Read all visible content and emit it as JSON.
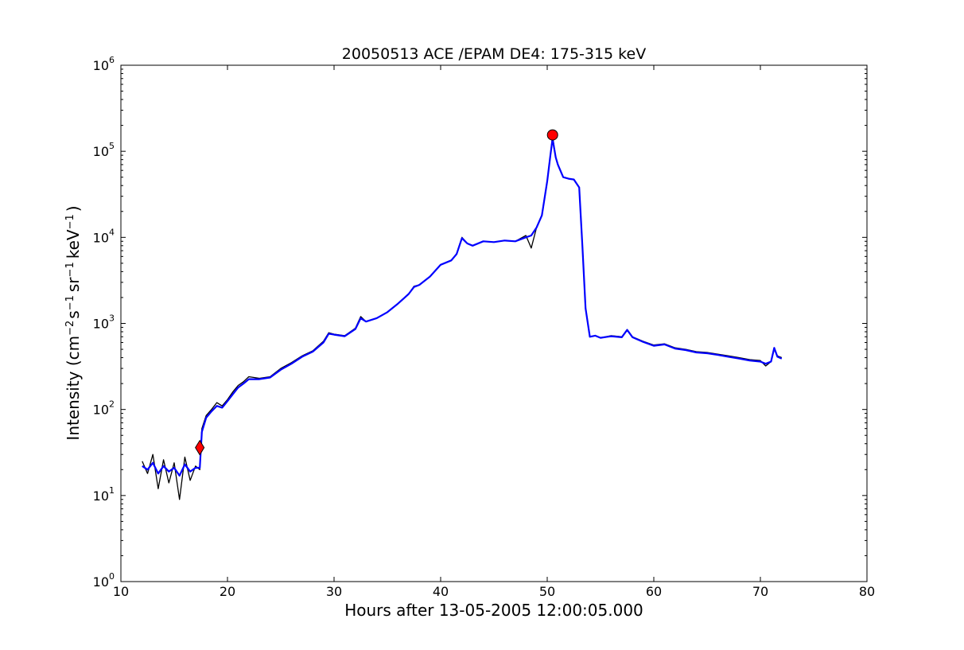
{
  "chart_data": {
    "type": "line",
    "title": "20050513 ACE /EPAM DE4: 175-315 keV",
    "xlabel": "Hours after 13-05-2005 12:00:05.000",
    "ylabel": {
      "prefix": "Intensity (cm",
      "sup1": "−2",
      "part2": "s",
      "sup2": "−1",
      "part3": "sr",
      "sup3": "−1",
      "part4": "keV",
      "sup4": "−1",
      "suffix": ")"
    },
    "xlim": [
      10,
      80
    ],
    "ylim": [
      1,
      1000000
    ],
    "yscale": "log",
    "grid": false,
    "x_tick_labels": [
      "10",
      "20",
      "30",
      "40",
      "50",
      "60",
      "70",
      "80"
    ],
    "x_ticks": [
      10,
      20,
      30,
      40,
      50,
      60,
      70,
      80
    ],
    "y_ticks": [
      {
        "value": 1,
        "base": "10",
        "exp": "0"
      },
      {
        "value": 10,
        "base": "10",
        "exp": "1"
      },
      {
        "value": 100,
        "base": "10",
        "exp": "2"
      },
      {
        "value": 1000,
        "base": "10",
        "exp": "3"
      },
      {
        "value": 10000,
        "base": "10",
        "exp": "4"
      },
      {
        "value": 100000,
        "base": "10",
        "exp": "5"
      },
      {
        "value": 1000000,
        "base": "10",
        "exp": "6"
      }
    ],
    "series": [
      {
        "color": "#000000",
        "style": "raw",
        "x": [
          12.0,
          12.5,
          13.0,
          13.5,
          14.0,
          14.5,
          15.0,
          15.5,
          16.0,
          16.5,
          17.0,
          17.4,
          17.6,
          18.0,
          18.5,
          19.0,
          19.5,
          20.0,
          20.5,
          21.0,
          21.5,
          22.0,
          23.0,
          24.0,
          25.0,
          26.0,
          27.0,
          28.0,
          29.0,
          29.5,
          30.0,
          31.0,
          32.0,
          32.5,
          33.0,
          34.0,
          35.0,
          36.0,
          37.0,
          37.5,
          38.0,
          39.0,
          40.0,
          41.0,
          41.5,
          42.0,
          42.5,
          43.0,
          44.0,
          45.0,
          46.0,
          47.0,
          48.0,
          48.5,
          49.0,
          49.5,
          50.0,
          50.3,
          50.5,
          50.8,
          51.0,
          51.5,
          52.0,
          52.5,
          53.0,
          53.3,
          53.6,
          54.0,
          54.5,
          55.0,
          56.0,
          57.0,
          57.5,
          58.0,
          59.0,
          60.0,
          61.0,
          62.0,
          63.0,
          64.0,
          65.0,
          66.0,
          67.0,
          68.0,
          69.0,
          70.0,
          70.5,
          71.0,
          71.3,
          71.6,
          72.0
        ],
        "y": [
          25,
          18,
          30,
          12,
          26,
          14,
          24,
          9,
          28,
          15,
          22,
          20,
          60,
          85,
          100,
          120,
          110,
          130,
          160,
          190,
          210,
          240,
          230,
          240,
          300,
          350,
          420,
          480,
          620,
          780,
          750,
          720,
          880,
          1200,
          1050,
          1150,
          1350,
          1700,
          2200,
          2700,
          2800,
          3500,
          4800,
          5400,
          6500,
          10000,
          8500,
          8000,
          9000,
          8800,
          9200,
          9000,
          10500,
          7500,
          13000,
          18000,
          45000,
          90000,
          150000,
          85000,
          70000,
          50000,
          48000,
          47000,
          38000,
          8000,
          1500,
          700,
          720,
          680,
          720,
          700,
          850,
          700,
          620,
          560,
          580,
          520,
          500,
          470,
          460,
          440,
          420,
          400,
          380,
          370,
          320,
          360,
          500,
          420,
          400
        ]
      },
      {
        "color": "#0000ff",
        "style": "smoothed",
        "x": [
          12.0,
          12.5,
          13.0,
          13.5,
          14.0,
          14.5,
          15.0,
          15.5,
          16.0,
          16.5,
          17.0,
          17.4,
          17.6,
          18.0,
          18.5,
          19.0,
          19.5,
          20.0,
          20.5,
          21.0,
          21.5,
          22.0,
          23.0,
          24.0,
          25.0,
          26.0,
          27.0,
          28.0,
          29.0,
          29.5,
          30.0,
          31.0,
          32.0,
          32.5,
          33.0,
          34.0,
          35.0,
          36.0,
          37.0,
          37.5,
          38.0,
          39.0,
          40.0,
          41.0,
          41.5,
          42.0,
          42.5,
          43.0,
          44.0,
          45.0,
          46.0,
          47.0,
          48.0,
          48.5,
          49.0,
          49.5,
          50.0,
          50.3,
          50.5,
          50.8,
          51.0,
          51.5,
          52.0,
          52.5,
          53.0,
          53.3,
          53.6,
          54.0,
          54.5,
          55.0,
          56.0,
          57.0,
          57.5,
          58.0,
          59.0,
          60.0,
          61.0,
          62.0,
          63.0,
          64.0,
          65.0,
          66.0,
          67.0,
          68.0,
          69.0,
          70.0,
          70.5,
          71.0,
          71.3,
          71.6,
          72.0
        ],
        "y": [
          22,
          20,
          24,
          18,
          22,
          19,
          21,
          17,
          23,
          19,
          21,
          21,
          55,
          80,
          95,
          110,
          105,
          125,
          150,
          180,
          200,
          225,
          225,
          235,
          290,
          340,
          410,
          470,
          600,
          760,
          740,
          710,
          860,
          1150,
          1050,
          1150,
          1350,
          1700,
          2200,
          2650,
          2800,
          3500,
          4800,
          5400,
          6400,
          9800,
          8500,
          8000,
          9000,
          8800,
          9200,
          9000,
          10000,
          10500,
          13000,
          18000,
          45000,
          90000,
          140000,
          85000,
          70000,
          50000,
          48000,
          47000,
          38000,
          8000,
          1500,
          700,
          720,
          680,
          710,
          690,
          840,
          690,
          610,
          550,
          570,
          510,
          490,
          460,
          450,
          430,
          410,
          390,
          370,
          360,
          340,
          360,
          520,
          410,
          390
        ]
      }
    ],
    "markers": [
      {
        "label": "onset",
        "shape": "diamond",
        "color": "#ff0000",
        "x": 17.4,
        "y": 36
      },
      {
        "label": "peak",
        "shape": "circle",
        "color": "#ff0000",
        "x": 50.5,
        "y": 155000
      }
    ]
  }
}
